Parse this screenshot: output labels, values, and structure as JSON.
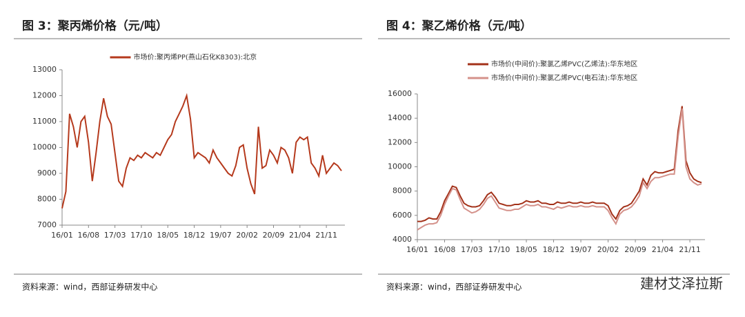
{
  "chart_data": [
    {
      "type": "line",
      "title": "图 3：聚丙烯价格（元/吨）",
      "source": "资料来源：wind，西部证券研发中心",
      "categories": [
        "16/01",
        "16/02",
        "16/03",
        "16/04",
        "16/05",
        "16/06",
        "16/07",
        "16/08",
        "16/09",
        "16/10",
        "16/11",
        "16/12",
        "17/01",
        "17/02",
        "17/03",
        "17/04",
        "17/05",
        "17/06",
        "17/07",
        "17/08",
        "17/09",
        "17/10",
        "17/11",
        "17/12",
        "18/01",
        "18/02",
        "18/03",
        "18/04",
        "18/05",
        "18/06",
        "18/07",
        "18/08",
        "18/09",
        "18/10",
        "18/11",
        "18/12",
        "19/01",
        "19/02",
        "19/03",
        "19/04",
        "19/05",
        "19/06",
        "19/07",
        "19/08",
        "19/09",
        "19/10",
        "19/11",
        "19/12",
        "20/01",
        "20/02",
        "20/03",
        "20/04",
        "20/05",
        "20/06",
        "20/07",
        "20/08",
        "20/09",
        "20/10",
        "20/11",
        "20/12",
        "21/01",
        "21/02",
        "21/03",
        "21/04",
        "21/05",
        "21/06",
        "21/07",
        "21/08",
        "21/09",
        "21/10",
        "21/11",
        "21/12",
        "22/01",
        "22/02",
        "22/03"
      ],
      "xticks": [
        "16/01",
        "16/08",
        "17/03",
        "17/10",
        "18/05",
        "18/12",
        "19/07",
        "20/02",
        "20/09",
        "21/04",
        "21/11"
      ],
      "series": [
        {
          "name": "市场价:聚丙烯PP(燕山石化K8303):北京",
          "color": "#b5391c",
          "values": [
            7650,
            8300,
            11300,
            10800,
            10000,
            11000,
            11200,
            10200,
            8700,
            9800,
            11000,
            11900,
            11200,
            10900,
            9800,
            8700,
            8500,
            9200,
            9600,
            9500,
            9700,
            9600,
            9800,
            9700,
            9600,
            9800,
            9700,
            10000,
            10300,
            10500,
            11000,
            11300,
            11600,
            12000,
            11100,
            9600,
            9800,
            9700,
            9600,
            9400,
            9900,
            9600,
            9400,
            9200,
            9000,
            8900,
            9300,
            10000,
            10100,
            9200,
            8600,
            8200,
            10800,
            9200,
            9300,
            9900,
            9700,
            9400,
            10000,
            9900,
            9600,
            9000,
            10200,
            10400,
            10300,
            10400,
            9400,
            9200,
            8900,
            9700,
            9000,
            9200,
            9400,
            9300,
            9100
          ]
        }
      ],
      "ylim": [
        7000,
        13000
      ],
      "yticks": [
        7000,
        8000,
        9000,
        10000,
        11000,
        12000,
        13000
      ],
      "grid": false
    },
    {
      "type": "line",
      "title": "图 4：聚乙烯价格（元/吨）",
      "source": "资料来源：wind，西部证券研发中心",
      "categories": [
        "16/01",
        "16/02",
        "16/03",
        "16/04",
        "16/05",
        "16/06",
        "16/07",
        "16/08",
        "16/09",
        "16/10",
        "16/11",
        "16/12",
        "17/01",
        "17/02",
        "17/03",
        "17/04",
        "17/05",
        "17/06",
        "17/07",
        "17/08",
        "17/09",
        "17/10",
        "17/11",
        "17/12",
        "18/01",
        "18/02",
        "18/03",
        "18/04",
        "18/05",
        "18/06",
        "18/07",
        "18/08",
        "18/09",
        "18/10",
        "18/11",
        "18/12",
        "19/01",
        "19/02",
        "19/03",
        "19/04",
        "19/05",
        "19/06",
        "19/07",
        "19/08",
        "19/09",
        "19/10",
        "19/11",
        "19/12",
        "20/01",
        "20/02",
        "20/03",
        "20/04",
        "20/05",
        "20/06",
        "20/07",
        "20/08",
        "20/09",
        "20/10",
        "20/11",
        "20/12",
        "21/01",
        "21/02",
        "21/03",
        "21/04",
        "21/05",
        "21/06",
        "21/07",
        "21/08",
        "21/09",
        "21/10",
        "21/11",
        "21/12",
        "22/01",
        "22/02"
      ],
      "xticks": [
        "16/01",
        "16/08",
        "17/03",
        "17/10",
        "18/05",
        "18/12",
        "19/07",
        "20/02",
        "20/09",
        "21/04",
        "21/11"
      ],
      "series": [
        {
          "name": "市场价(中间价):聚氯乙烯PVC(乙烯法):华东地区",
          "color": "#a33119",
          "values": [
            5500,
            5500,
            5600,
            5800,
            5700,
            5700,
            6300,
            7200,
            7800,
            8400,
            8300,
            7600,
            7000,
            6800,
            6700,
            6700,
            6800,
            7200,
            7700,
            7900,
            7500,
            7000,
            6900,
            6800,
            6800,
            6900,
            6900,
            7000,
            7200,
            7100,
            7100,
            7200,
            7000,
            7000,
            6900,
            6900,
            7100,
            7000,
            7000,
            7100,
            7000,
            7000,
            7100,
            7000,
            7000,
            7100,
            7000,
            7000,
            7000,
            6800,
            6100,
            5700,
            6400,
            6700,
            6800,
            7000,
            7500,
            8000,
            9000,
            8500,
            9300,
            9600,
            9500,
            9500,
            9600,
            9700,
            9800,
            13000,
            15000,
            10500,
            9500,
            9000,
            8800,
            8700
          ]
        },
        {
          "name": "市场价(中间价):聚氯乙烯PVC(电石法):华东地区",
          "color": "#d4918a",
          "values": [
            4800,
            5000,
            5200,
            5300,
            5300,
            5400,
            6000,
            6900,
            7600,
            8200,
            8100,
            7300,
            6600,
            6400,
            6200,
            6300,
            6500,
            6900,
            7400,
            7600,
            7100,
            6600,
            6500,
            6400,
            6400,
            6500,
            6500,
            6700,
            6900,
            6800,
            6800,
            6900,
            6700,
            6700,
            6600,
            6500,
            6700,
            6600,
            6700,
            6800,
            6700,
            6700,
            6800,
            6700,
            6700,
            6800,
            6700,
            6700,
            6700,
            6400,
            5800,
            5300,
            6100,
            6400,
            6500,
            6700,
            7100,
            7600,
            8700,
            8200,
            8800,
            9100,
            9100,
            9200,
            9300,
            9400,
            9400,
            12500,
            14800,
            10000,
            9000,
            8700,
            8500,
            8600
          ]
        }
      ],
      "ylim": [
        4000,
        16000
      ],
      "yticks": [
        4000,
        6000,
        8000,
        10000,
        12000,
        14000,
        16000
      ],
      "grid": false
    }
  ],
  "watermark": "建材艾泽拉斯"
}
